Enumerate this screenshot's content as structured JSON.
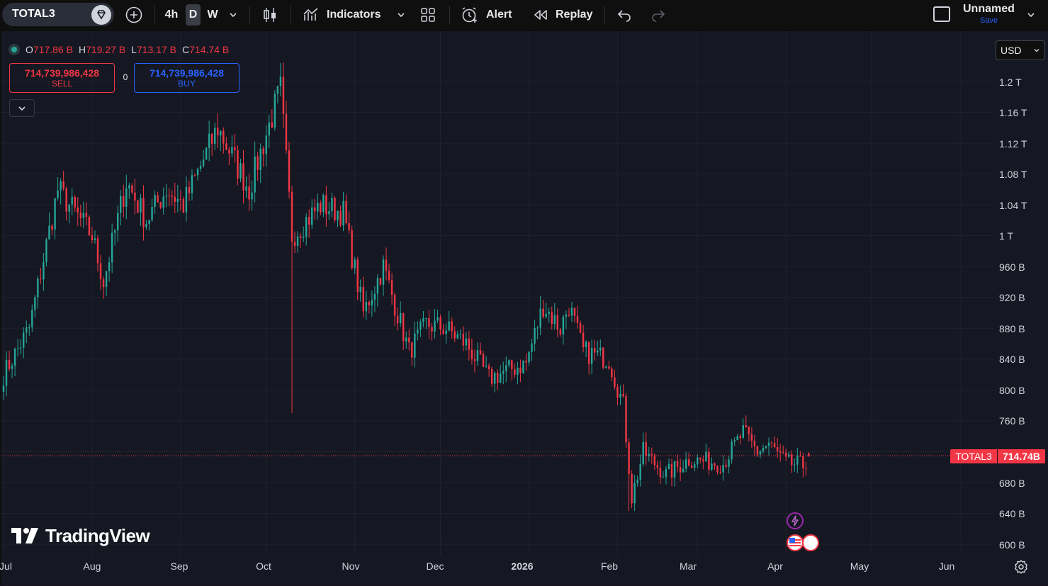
{
  "toolbar": {
    "symbol": "TOTAL3",
    "intervals": [
      "4h",
      "D",
      "W"
    ],
    "active_interval": "D",
    "indicators_label": "Indicators",
    "alert_label": "Alert",
    "replay_label": "Replay",
    "layout_name": "Unnamed",
    "save_label": "Save"
  },
  "legend": {
    "o_key": "O",
    "o_val": "717.86 B",
    "h_key": "H",
    "h_val": "719.27 B",
    "l_key": "L",
    "l_val": "713.17 B",
    "c_key": "C",
    "c_val": "714.74 B"
  },
  "trade": {
    "sell_price": "714,739,986,428",
    "sell_label": "SELL",
    "spread": "0",
    "buy_price": "714,739,986,428",
    "buy_label": "BUY"
  },
  "currency": "USD",
  "price_scale": [
    "1.2 T",
    "1.16 T",
    "1.12 T",
    "1.08 T",
    "1.04 T",
    "1 T",
    "960 B",
    "920 B",
    "880 B",
    "840 B",
    "800 B",
    "760 B",
    "680 B",
    "640 B",
    "600 B"
  ],
  "time_scale": [
    "Jul",
    "Aug",
    "Sep",
    "Oct",
    "Nov",
    "Dec",
    "2026",
    "Feb",
    "Mar",
    "Apr",
    "May",
    "Jun"
  ],
  "last_price": {
    "symbol": "TOTAL3",
    "value": "714.74B"
  },
  "watermark": "TradingView",
  "colors": {
    "up": "#26a69a",
    "down": "#f23645",
    "background": "#151822",
    "grid": "#232631",
    "accent": "#2962ff"
  },
  "chart_data": {
    "type": "candlestick",
    "symbol": "TOTAL3",
    "interval": "D",
    "y_unit": "USD billions",
    "ylim": [
      590,
      1220
    ],
    "x_ticks": [
      "Jul",
      "Aug",
      "Sep",
      "Oct",
      "Nov",
      "Dec",
      "2026",
      "Feb",
      "Mar",
      "Apr",
      "May",
      "Jun"
    ],
    "anchors": [
      {
        "date": "2025-07-01",
        "close": 820
      },
      {
        "date": "2025-07-10",
        "close": 880
      },
      {
        "date": "2025-07-20",
        "close": 1060
      },
      {
        "date": "2025-08-01",
        "close": 1000
      },
      {
        "date": "2025-08-05",
        "close": 940
      },
      {
        "date": "2025-08-13",
        "close": 1070
      },
      {
        "date": "2025-08-20",
        "close": 1020
      },
      {
        "date": "2025-08-27",
        "close": 1060
      },
      {
        "date": "2025-09-02",
        "close": 1040
      },
      {
        "date": "2025-09-14",
        "close": 1140
      },
      {
        "date": "2025-09-25",
        "close": 1060
      },
      {
        "date": "2025-09-30",
        "close": 1120
      },
      {
        "date": "2025-10-06",
        "close": 1190
      },
      {
        "date": "2025-10-10",
        "close": 1000
      },
      {
        "date": "2025-10-20",
        "close": 1040
      },
      {
        "date": "2025-10-28",
        "close": 1030
      },
      {
        "date": "2025-11-04",
        "close": 900
      },
      {
        "date": "2025-11-11",
        "close": 960
      },
      {
        "date": "2025-11-20",
        "close": 850
      },
      {
        "date": "2025-11-26",
        "close": 885
      },
      {
        "date": "2025-12-03",
        "close": 880
      },
      {
        "date": "2025-12-10",
        "close": 860
      },
      {
        "date": "2025-12-18",
        "close": 815
      },
      {
        "date": "2025-12-31",
        "close": 835
      },
      {
        "date": "2026-01-06",
        "close": 910
      },
      {
        "date": "2026-01-12",
        "close": 880
      },
      {
        "date": "2026-01-15",
        "close": 910
      },
      {
        "date": "2026-01-20",
        "close": 850
      },
      {
        "date": "2026-01-29",
        "close": 840
      },
      {
        "date": "2026-02-03",
        "close": 780
      },
      {
        "date": "2026-02-06",
        "close": 660
      },
      {
        "date": "2026-02-10",
        "close": 720
      },
      {
        "date": "2026-02-18",
        "close": 690
      },
      {
        "date": "2026-02-26",
        "close": 710
      },
      {
        "date": "2026-03-10",
        "close": 705
      },
      {
        "date": "2026-03-17",
        "close": 745
      },
      {
        "date": "2026-03-22",
        "close": 720
      },
      {
        "date": "2026-03-26",
        "close": 730
      },
      {
        "date": "2026-04-01",
        "close": 705
      },
      {
        "date": "2026-04-07",
        "close": 702
      },
      {
        "date": "2026-04-09",
        "close": 714.74
      }
    ],
    "last": {
      "open": 717.86,
      "high": 719.27,
      "low": 713.17,
      "close": 714.74
    }
  }
}
